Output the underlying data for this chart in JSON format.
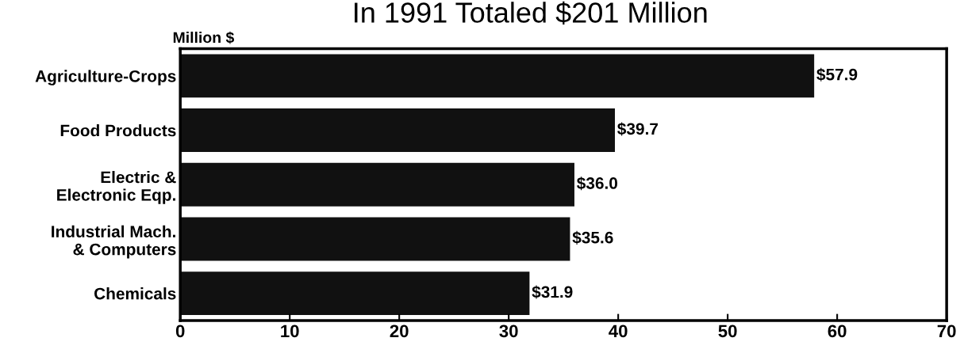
{
  "chart_data": {
    "type": "bar",
    "orientation": "horizontal",
    "title": "In 1991 Totaled $201 Million",
    "xlabel": "Million $",
    "categories": [
      "Agriculture-Crops",
      "Food Products",
      "Electric &\nElectronic Eqp.",
      "Industrial Mach.\n& Computers",
      "Chemicals"
    ],
    "values": [
      57.9,
      39.7,
      36.0,
      35.6,
      31.9
    ],
    "value_labels": [
      "$57.9",
      "$39.7",
      "$36.0",
      "$35.6",
      "$31.9"
    ],
    "color": "#111111",
    "xlim": [
      0,
      70
    ],
    "xticks": [
      0,
      10,
      20,
      30,
      40,
      50,
      60,
      70
    ],
    "grid": false
  }
}
